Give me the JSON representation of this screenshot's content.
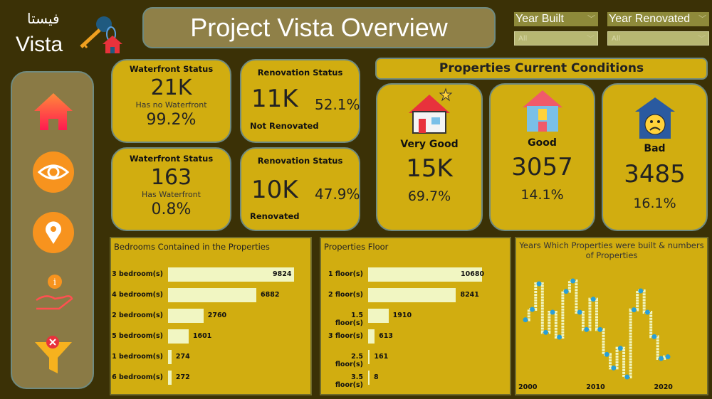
{
  "logo": {
    "arabic": "فيستا",
    "english": "Vista",
    "icon": "key-house-icon"
  },
  "header": {
    "title": "Project Vista Overview"
  },
  "filters": [
    {
      "label": "Year Built",
      "value": "All"
    },
    {
      "label": "Year Renovated",
      "value": "All"
    }
  ],
  "sidebar": {
    "items": [
      {
        "icon": "home-icon"
      },
      {
        "icon": "eye-icon"
      },
      {
        "icon": "location-pin-icon"
      },
      {
        "icon": "info-hand-icon"
      },
      {
        "icon": "filter-clear-icon"
      }
    ]
  },
  "kpis": {
    "waterfront_no": {
      "title": "Waterfront Status",
      "value": "21K",
      "label": "Has no Waterfront",
      "pct": "99.2%"
    },
    "waterfront_yes": {
      "title": "Waterfront Status",
      "value": "163",
      "label": "Has Waterfront",
      "pct": "0.8%"
    },
    "renov_no": {
      "title": "Renovation Status",
      "value": "11K",
      "label": "Not Renovated",
      "pct": "52.1%"
    },
    "renov_yes": {
      "title": "Renovation Status",
      "value": "10K",
      "label": "Renovated",
      "pct": "47.9%"
    }
  },
  "conditions": {
    "title": "Properties Current Conditions",
    "items": [
      {
        "label": "Very Good",
        "value": "15K",
        "pct": "69.7%",
        "icon": "house-star-icon"
      },
      {
        "label": "Good",
        "value": "3057",
        "pct": "14.1%",
        "icon": "house-thumbs-up-icon"
      },
      {
        "label": "Bad",
        "value": "3485",
        "pct": "16.1%",
        "icon": "house-sad-icon"
      }
    ]
  },
  "chart_data": [
    {
      "type": "bar",
      "orientation": "horizontal",
      "title": "Bedrooms Contained in the Properties",
      "categories": [
        "3 bedroom(s)",
        "4 bedroom(s)",
        "2 bedroom(s)",
        "5 bedroom(s)",
        "1 bedroom(s)",
        "6 bedroom(s)"
      ],
      "values": [
        9824,
        6882,
        2760,
        1601,
        274,
        272
      ],
      "bar_color": "#f1f6c2"
    },
    {
      "type": "bar",
      "orientation": "horizontal",
      "title": "Properties Floor",
      "categories": [
        "1 floor(s)",
        "2 floor(s)",
        "1.5 floor(s)",
        "3 floor(s)",
        "2.5 floor(s)",
        "3.5 floor(s)"
      ],
      "values": [
        10680,
        8241,
        1910,
        613,
        161,
        8
      ],
      "bar_color": "#f1f6c2"
    },
    {
      "type": "line",
      "title": "Years Which Properties were built & numbers of Properties",
      "x": [
        2000,
        2001,
        2002,
        2003,
        2004,
        2005,
        2006,
        2007,
        2008,
        2009,
        2010,
        2011,
        2012,
        2013,
        2014,
        2015,
        2016,
        2017,
        2018,
        2019,
        2020,
        2021
      ],
      "values": [
        536,
        624,
        840,
        430,
        600,
        390,
        776,
        864,
        600,
        454,
        710,
        454,
        244,
        130,
        296,
        54,
        620,
        780,
        600,
        394,
        210,
        224
      ],
      "xticks": [
        "2000",
        "2010",
        "2020"
      ],
      "ylim": [
        0,
        900
      ],
      "line_color": "#f1f6c2",
      "marker_color": "#2a9fd6"
    }
  ]
}
